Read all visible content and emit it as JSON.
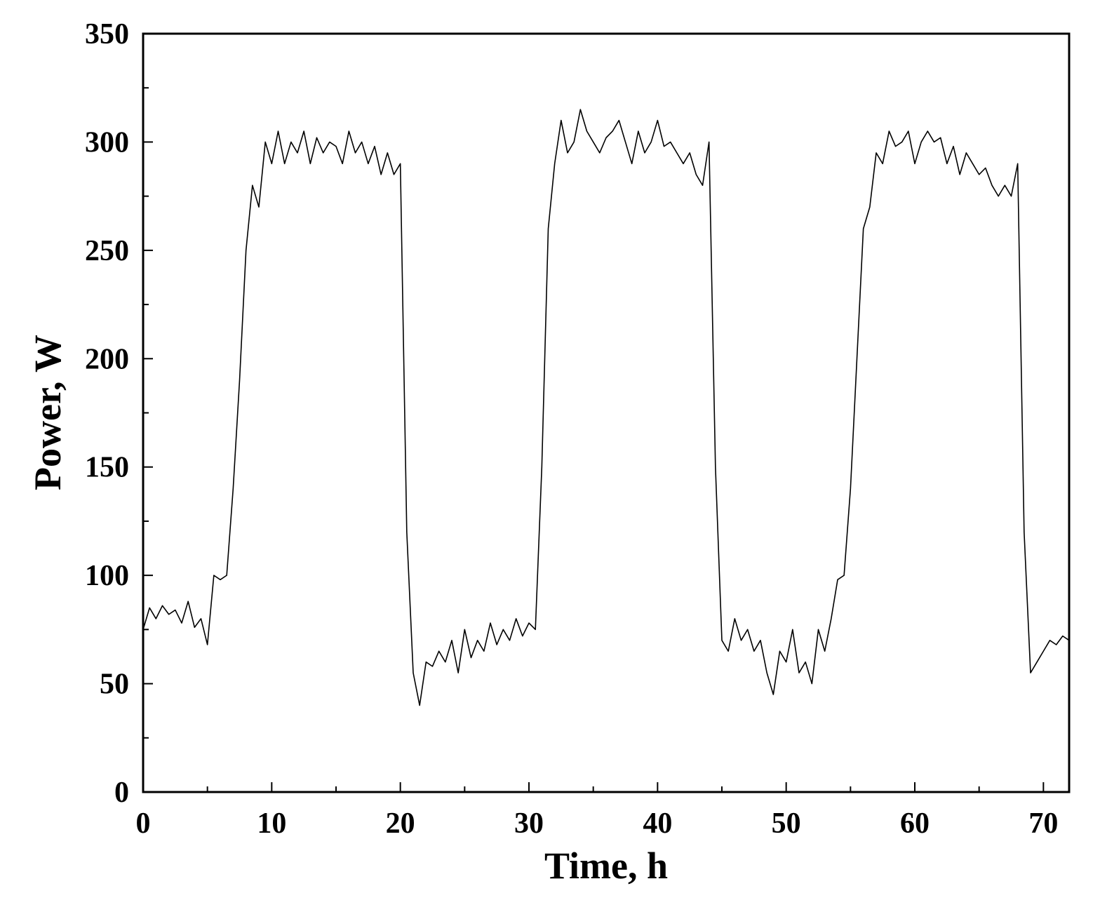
{
  "chart_data": {
    "type": "line",
    "x_label": "Time, h",
    "y_label": "Power, W",
    "x": [
      0,
      0.5,
      1,
      1.5,
      2,
      2.5,
      3,
      3.5,
      4,
      4.5,
      5,
      5.5,
      6,
      6.5,
      7,
      7.5,
      8,
      8.5,
      9,
      9.5,
      10,
      10.5,
      11,
      11.5,
      12,
      12.5,
      13,
      13.5,
      14,
      14.5,
      15,
      15.5,
      16,
      16.5,
      17,
      17.5,
      18,
      18.5,
      19,
      19.5,
      20,
      20.5,
      21,
      21.5,
      22,
      22.5,
      23,
      23.5,
      24,
      24.5,
      25,
      25.5,
      26,
      26.5,
      27,
      27.5,
      28,
      28.5,
      29,
      29.5,
      30,
      30.5,
      31,
      31.5,
      32,
      32.5,
      33,
      33.5,
      34,
      34.5,
      35,
      35.5,
      36,
      36.5,
      37,
      37.5,
      38,
      38.5,
      39,
      39.5,
      40,
      40.5,
      41,
      41.5,
      42,
      42.5,
      43,
      43.5,
      44,
      44.5,
      45,
      45.5,
      46,
      46.5,
      47,
      47.5,
      48,
      48.5,
      49,
      49.5,
      50,
      50.5,
      51,
      51.5,
      52,
      52.5,
      53,
      53.5,
      54,
      54.5,
      55,
      55.5,
      56,
      56.5,
      57,
      57.5,
      58,
      58.5,
      59,
      59.5,
      60,
      60.5,
      61,
      61.5,
      62,
      62.5,
      63,
      63.5,
      64,
      64.5,
      65,
      65.5,
      66,
      66.5,
      67,
      67.5,
      68,
      68.5,
      69,
      69.5,
      70,
      70.5,
      71,
      71.5,
      72
    ],
    "series": [
      {
        "name": "Power",
        "color": "#000000",
        "values": [
          75,
          85,
          80,
          86,
          82,
          84,
          78,
          88,
          76,
          80,
          68,
          100,
          98,
          100,
          140,
          190,
          250,
          280,
          270,
          300,
          290,
          305,
          290,
          300,
          295,
          305,
          290,
          302,
          295,
          300,
          298,
          290,
          305,
          295,
          300,
          290,
          298,
          285,
          295,
          285,
          290,
          120,
          55,
          40,
          60,
          58,
          65,
          60,
          70,
          55,
          75,
          62,
          70,
          65,
          78,
          68,
          75,
          70,
          80,
          72,
          78,
          75,
          150,
          260,
          290,
          310,
          295,
          300,
          315,
          305,
          300,
          295,
          302,
          305,
          310,
          300,
          290,
          305,
          295,
          300,
          310,
          298,
          300,
          295,
          290,
          295,
          285,
          280,
          300,
          150,
          70,
          65,
          80,
          70,
          75,
          65,
          70,
          55,
          45,
          65,
          60,
          75,
          55,
          60,
          50,
          75,
          65,
          80,
          98,
          100,
          140,
          200,
          260,
          270,
          295,
          290,
          305,
          298,
          300,
          305,
          290,
          300,
          305,
          300,
          302,
          290,
          298,
          285,
          295,
          290,
          285,
          288,
          280,
          275,
          280,
          275,
          290,
          120,
          55,
          60,
          65,
          70,
          68,
          72,
          70
        ]
      }
    ],
    "xlim": [
      0,
      72
    ],
    "ylim": [
      0,
      350
    ],
    "xticks": [
      0,
      10,
      20,
      30,
      40,
      50,
      60,
      70
    ],
    "yticks": [
      0,
      50,
      100,
      150,
      200,
      250,
      300,
      350
    ]
  }
}
